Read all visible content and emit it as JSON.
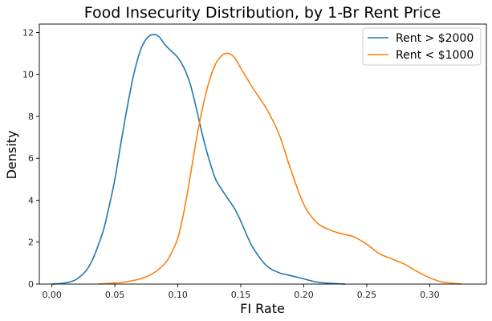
{
  "chart_data": {
    "type": "line",
    "title": "Food Insecurity Distribution, by 1-Br Rent Price",
    "xlabel": "FI Rate",
    "ylabel": "Density",
    "xlim": [
      -0.01,
      0.345
    ],
    "ylim": [
      0,
      12.4
    ],
    "xticks": [
      0.0,
      0.05,
      0.1,
      0.15,
      0.2,
      0.25,
      0.3
    ],
    "xtick_labels": [
      "0.00",
      "0.05",
      "0.10",
      "0.15",
      "0.20",
      "0.25",
      "0.30"
    ],
    "yticks": [
      0,
      2,
      4,
      6,
      8,
      10,
      12
    ],
    "ytick_labels": [
      "0",
      "2",
      "4",
      "6",
      "8",
      "10",
      "12"
    ],
    "grid": false,
    "legend_position": "top-right",
    "series": [
      {
        "name": "Rent > $2000",
        "color": "#1f77b4",
        "x": [
          0.0,
          0.01,
          0.02,
          0.03,
          0.04,
          0.045,
          0.05,
          0.055,
          0.06,
          0.065,
          0.07,
          0.075,
          0.08,
          0.085,
          0.09,
          0.095,
          0.1,
          0.105,
          0.11,
          0.115,
          0.12,
          0.125,
          0.13,
          0.135,
          0.14,
          0.145,
          0.15,
          0.155,
          0.16,
          0.17,
          0.18,
          0.19,
          0.2,
          0.21,
          0.22,
          0.233
        ],
        "y": [
          0.0,
          0.05,
          0.25,
          0.9,
          2.4,
          3.6,
          5.0,
          6.8,
          8.5,
          10.0,
          11.1,
          11.7,
          11.9,
          11.8,
          11.4,
          11.1,
          10.8,
          10.3,
          9.5,
          8.3,
          7.0,
          5.9,
          5.0,
          4.5,
          4.05,
          3.6,
          3.0,
          2.3,
          1.7,
          0.9,
          0.55,
          0.4,
          0.25,
          0.1,
          0.04,
          0.0
        ]
      },
      {
        "name": "Rent < $1000",
        "color": "#ff7f0e",
        "x": [
          0.037,
          0.05,
          0.06,
          0.07,
          0.08,
          0.09,
          0.095,
          0.1,
          0.105,
          0.11,
          0.115,
          0.12,
          0.125,
          0.13,
          0.135,
          0.14,
          0.145,
          0.15,
          0.155,
          0.16,
          0.17,
          0.18,
          0.19,
          0.2,
          0.21,
          0.22,
          0.23,
          0.24,
          0.25,
          0.26,
          0.27,
          0.28,
          0.29,
          0.3,
          0.31,
          0.325
        ],
        "y": [
          0.0,
          0.05,
          0.12,
          0.25,
          0.5,
          1.0,
          1.5,
          2.2,
          3.5,
          5.2,
          7.0,
          8.5,
          9.7,
          10.5,
          10.9,
          11.0,
          10.8,
          10.3,
          9.8,
          9.3,
          8.4,
          7.2,
          5.4,
          3.8,
          2.95,
          2.6,
          2.4,
          2.25,
          1.9,
          1.45,
          1.2,
          0.95,
          0.6,
          0.3,
          0.1,
          0.0
        ]
      }
    ]
  }
}
